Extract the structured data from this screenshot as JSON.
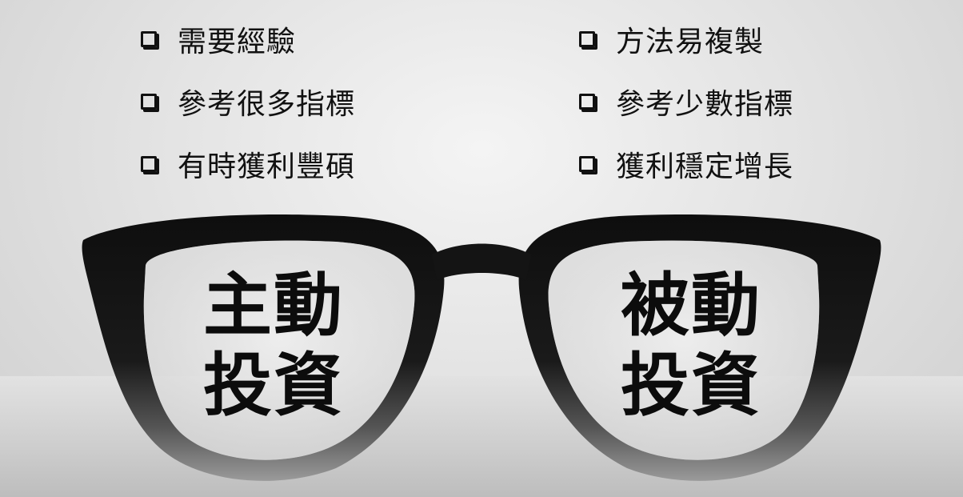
{
  "checklist": {
    "left": [
      {
        "icon": "checkbox-icon",
        "label": "需要經驗"
      },
      {
        "icon": "checkbox-icon",
        "label": "參考很多指標"
      },
      {
        "icon": "checkbox-icon",
        "label": "有時獲利豐碩"
      }
    ],
    "right": [
      {
        "icon": "checkbox-icon",
        "label": "方法易複製"
      },
      {
        "icon": "checkbox-icon",
        "label": "參考少數指標"
      },
      {
        "icon": "checkbox-icon",
        "label": "獲利穩定增長"
      }
    ]
  },
  "lenses": {
    "left": {
      "line1": "主動",
      "line2": "投資"
    },
    "right": {
      "line1": "被動",
      "line2": "投資"
    }
  },
  "colors": {
    "frame": "#141414",
    "text": "#111111",
    "background": "#e6e6e6"
  }
}
